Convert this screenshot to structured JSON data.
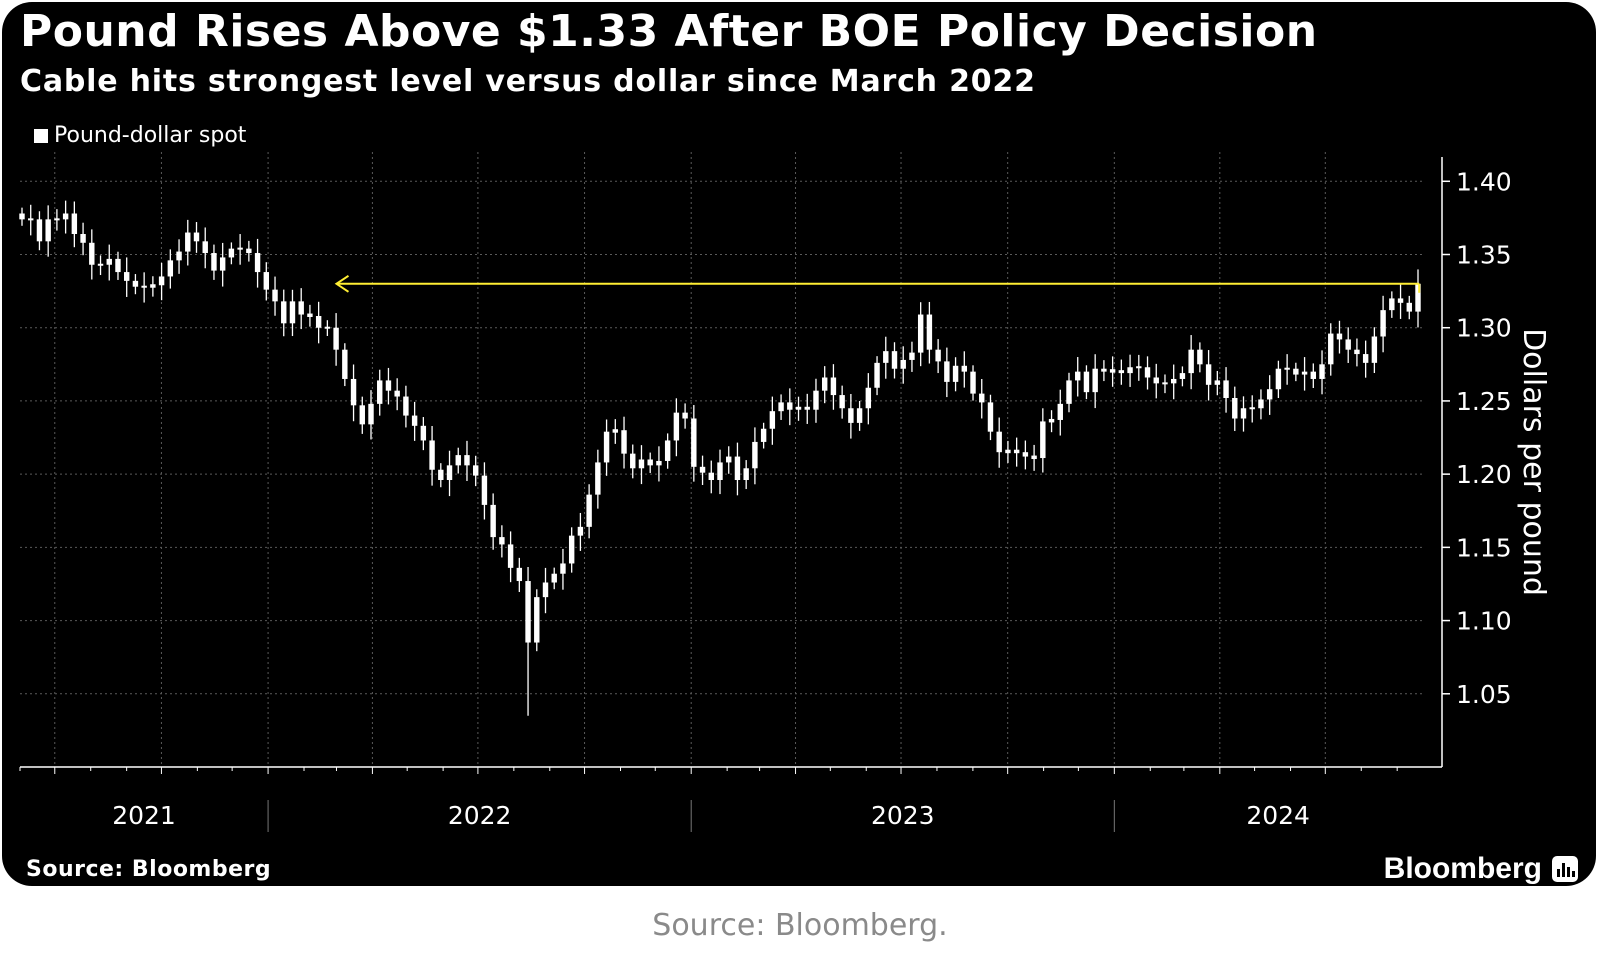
{
  "header": {
    "title": "Pound Rises Above $1.33 After BOE Policy Decision",
    "subtitle": "Cable hits strongest level versus dollar since March 2022"
  },
  "footer": {
    "source": "Source: Bloomberg",
    "brand": "Bloomberg",
    "brand_icon": "bloomberg-terminal-icon",
    "caption": "Source: Bloomberg."
  },
  "colors": {
    "background": "#000000",
    "candle": "#ffffff",
    "grid": "#5a5a5a",
    "reference_line": "#ffee33",
    "caption": "#8a8a8a"
  },
  "chart_data": {
    "type": "candlestick",
    "title": "Pound Rises Above $1.33 After BOE Policy Decision",
    "subtitle": "Cable hits strongest level versus dollar since March 2022",
    "series_name": "Pound-dollar spot",
    "ylabel": "Dollars per pound",
    "ylim": [
      1.0,
      1.42
    ],
    "yticks": [
      1.05,
      1.1,
      1.15,
      1.2,
      1.25,
      1.3,
      1.35,
      1.4
    ],
    "ytick_labels": [
      "1.05",
      "1.10",
      "1.15",
      "1.20",
      "1.25",
      "1.30",
      "1.35",
      "1.40"
    ],
    "xlim": [
      "2021-06-01",
      "2024-09-25"
    ],
    "year_labels": [
      "2021",
      "2022",
      "2023",
      "2024"
    ],
    "year_boundaries": [
      "2022-01-01",
      "2023-01-01",
      "2024-01-01"
    ],
    "legend_position": "top-left",
    "grid": true,
    "reference_line": {
      "value": 1.33,
      "from": "2022-03-01",
      "to": "2024-09-20",
      "arrow": "left"
    },
    "weekly_closes": [
      1.374,
      1.374,
      1.359,
      1.374,
      1.374,
      1.378,
      1.364,
      1.358,
      1.343,
      1.343,
      1.347,
      1.338,
      1.332,
      1.328,
      1.328,
      1.329,
      1.335,
      1.346,
      1.352,
      1.365,
      1.359,
      1.351,
      1.339,
      1.348,
      1.354,
      1.354,
      1.351,
      1.338,
      1.326,
      1.318,
      1.303,
      1.318,
      1.309,
      1.308,
      1.3,
      1.3,
      1.285,
      1.265,
      1.247,
      1.234,
      1.248,
      1.264,
      1.257,
      1.253,
      1.24,
      1.233,
      1.223,
      1.203,
      1.196,
      1.206,
      1.213,
      1.206,
      1.199,
      1.179,
      1.157,
      1.152,
      1.136,
      1.127,
      1.085,
      1.116,
      1.126,
      1.132,
      1.139,
      1.158,
      1.164,
      1.186,
      1.208,
      1.229,
      1.23,
      1.214,
      1.204,
      1.21,
      1.206,
      1.209,
      1.223,
      1.242,
      1.238,
      1.205,
      1.201,
      1.196,
      1.208,
      1.212,
      1.196,
      1.204,
      1.222,
      1.231,
      1.243,
      1.249,
      1.244,
      1.246,
      1.244,
      1.257,
      1.266,
      1.254,
      1.245,
      1.235,
      1.245,
      1.259,
      1.276,
      1.284,
      1.272,
      1.278,
      1.283,
      1.309,
      1.285,
      1.277,
      1.263,
      1.274,
      1.27,
      1.255,
      1.249,
      1.229,
      1.215,
      1.216,
      1.215,
      1.212,
      1.211,
      1.236,
      1.237,
      1.248,
      1.264,
      1.27,
      1.256,
      1.272,
      1.27,
      1.271,
      1.269,
      1.273,
      1.273,
      1.266,
      1.262,
      1.262,
      1.265,
      1.269,
      1.285,
      1.275,
      1.261,
      1.264,
      1.252,
      1.238,
      1.245,
      1.245,
      1.251,
      1.258,
      1.272,
      1.272,
      1.268,
      1.27,
      1.265,
      1.275,
      1.296,
      1.292,
      1.285,
      1.282,
      1.276,
      1.294,
      1.312,
      1.32,
      1.317,
      1.311,
      1.33
    ]
  }
}
